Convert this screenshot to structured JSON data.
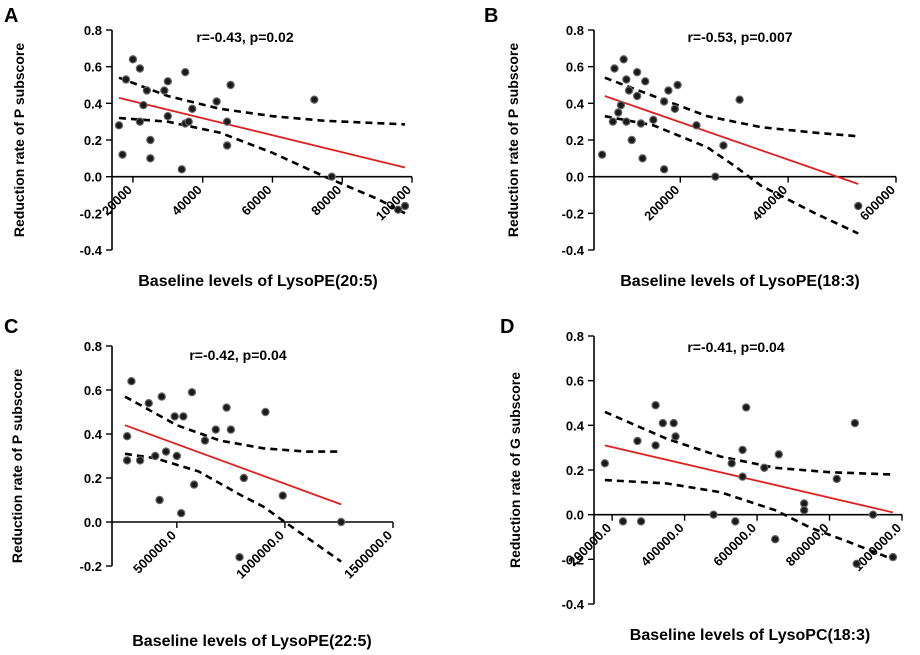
{
  "colors": {
    "fit_line": "#e02020",
    "points": "#1a1a1a",
    "axes": "#000000"
  },
  "chart_data": [
    {
      "type": "scatter",
      "panel": "A",
      "stat": "r=-0.43, p=0.02",
      "xlabel": "Baseline levels of LysoPE(20:5)",
      "ylabel": "Reduction rate of P subscore",
      "xlim": [
        14000,
        100000
      ],
      "ylim": [
        -0.4,
        0.8
      ],
      "xticks": [
        20000,
        40000,
        60000,
        80000,
        100000
      ],
      "xtick_labels": [
        "20000",
        "40000",
        "60000",
        "80000",
        "100000"
      ],
      "yticks": [
        -0.4,
        -0.2,
        0.0,
        0.2,
        0.4,
        0.6,
        0.8
      ],
      "ytick_labels": [
        "-0.4",
        "-0.2",
        "0.0",
        "0.2",
        "0.4",
        "0.6",
        "0.8"
      ],
      "points": [
        [
          20000,
          0.64
        ],
        [
          22000,
          0.59
        ],
        [
          18000,
          0.53
        ],
        [
          29000,
          0.47
        ],
        [
          24000,
          0.47
        ],
        [
          30000,
          0.52
        ],
        [
          35000,
          0.57
        ],
        [
          48000,
          0.5
        ],
        [
          23000,
          0.39
        ],
        [
          37000,
          0.37
        ],
        [
          44000,
          0.41
        ],
        [
          30000,
          0.33
        ],
        [
          22000,
          0.3
        ],
        [
          35000,
          0.29
        ],
        [
          36000,
          0.3
        ],
        [
          47000,
          0.3
        ],
        [
          16000,
          0.28
        ],
        [
          25000,
          0.2
        ],
        [
          47000,
          0.17
        ],
        [
          17000,
          0.12
        ],
        [
          25000,
          0.1
        ],
        [
          34000,
          0.04
        ],
        [
          72000,
          0.42
        ],
        [
          77000,
          0.0
        ],
        [
          96000,
          -0.18
        ],
        [
          98000,
          -0.16
        ]
      ],
      "fit": [
        [
          16000,
          0.43
        ],
        [
          98000,
          0.05
        ]
      ],
      "ci_upper": [
        [
          16000,
          0.54
        ],
        [
          30000,
          0.44
        ],
        [
          45000,
          0.37
        ],
        [
          60000,
          0.33
        ],
        [
          75000,
          0.305
        ],
        [
          98000,
          0.285
        ]
      ],
      "ci_lower": [
        [
          16000,
          0.32
        ],
        [
          30000,
          0.3
        ],
        [
          45000,
          0.24
        ],
        [
          60000,
          0.13
        ],
        [
          75000,
          0.0
        ],
        [
          90000,
          -0.12
        ],
        [
          98000,
          -0.2
        ]
      ]
    },
    {
      "type": "scatter",
      "panel": "B",
      "stat": "r=-0.53, p=0.007",
      "xlabel": "Baseline levels of LysoPE(18:3)",
      "ylabel": "Reduction rate of P subscore",
      "xlim": [
        40000,
        600000
      ],
      "ylim": [
        -0.4,
        0.8
      ],
      "xticks": [
        200000,
        400000,
        600000
      ],
      "xtick_labels": [
        "200000",
        "400000",
        "600000"
      ],
      "yticks": [
        -0.4,
        -0.2,
        0.0,
        0.2,
        0.4,
        0.6,
        0.8
      ],
      "ytick_labels": [
        "-0.4",
        "-0.2",
        "0.0",
        "0.2",
        "0.4",
        "0.6",
        "0.8"
      ],
      "points": [
        [
          95000,
          0.64
        ],
        [
          78000,
          0.59
        ],
        [
          120000,
          0.57
        ],
        [
          100000,
          0.53
        ],
        [
          135000,
          0.52
        ],
        [
          195000,
          0.5
        ],
        [
          105000,
          0.47
        ],
        [
          178000,
          0.47
        ],
        [
          120000,
          0.44
        ],
        [
          170000,
          0.41
        ],
        [
          90000,
          0.39
        ],
        [
          190000,
          0.37
        ],
        [
          85000,
          0.35
        ],
        [
          100000,
          0.3
        ],
        [
          150000,
          0.31
        ],
        [
          127000,
          0.29
        ],
        [
          75000,
          0.3
        ],
        [
          230000,
          0.28
        ],
        [
          110000,
          0.2
        ],
        [
          310000,
          0.42
        ],
        [
          280000,
          0.17
        ],
        [
          130000,
          0.1
        ],
        [
          55000,
          0.12
        ],
        [
          170000,
          0.04
        ],
        [
          265000,
          0.0
        ],
        [
          530000,
          -0.16
        ]
      ],
      "fit": [
        [
          60000,
          0.44
        ],
        [
          530000,
          -0.04
        ]
      ],
      "ci_upper": [
        [
          60000,
          0.54
        ],
        [
          150000,
          0.44
        ],
        [
          250000,
          0.33
        ],
        [
          350000,
          0.27
        ],
        [
          450000,
          0.24
        ],
        [
          530000,
          0.22
        ]
      ],
      "ci_lower": [
        [
          60000,
          0.33
        ],
        [
          150000,
          0.28
        ],
        [
          250000,
          0.16
        ],
        [
          300000,
          0.06
        ],
        [
          350000,
          -0.05
        ],
        [
          450000,
          -0.2
        ],
        [
          530000,
          -0.31
        ]
      ]
    },
    {
      "type": "scatter",
      "panel": "C",
      "stat": "r=-0.42, p=0.04",
      "xlabel": "Baseline levels of LysoPE(22:5)",
      "ylabel": "Reduction rate of P subscore",
      "xlim": [
        200000,
        1500000
      ],
      "ylim": [
        -0.2,
        0.8
      ],
      "xticks": [
        500000,
        1000000,
        1500000
      ],
      "xtick_labels": [
        "500000.0",
        "1000000.0",
        "1500000.0"
      ],
      "yticks": [
        -0.2,
        0.0,
        0.2,
        0.4,
        0.6,
        0.8
      ],
      "ytick_labels": [
        "-0.2",
        "0.0",
        "0.2",
        "0.4",
        "0.6",
        "0.8"
      ],
      "points": [
        [
          290000,
          0.64
        ],
        [
          430000,
          0.57
        ],
        [
          570000,
          0.59
        ],
        [
          370000,
          0.54
        ],
        [
          730000,
          0.52
        ],
        [
          910000,
          0.5
        ],
        [
          530000,
          0.48
        ],
        [
          490000,
          0.48
        ],
        [
          270000,
          0.39
        ],
        [
          680000,
          0.42
        ],
        [
          750000,
          0.42
        ],
        [
          630000,
          0.37
        ],
        [
          450000,
          0.32
        ],
        [
          270000,
          0.28
        ],
        [
          330000,
          0.28
        ],
        [
          400000,
          0.3
        ],
        [
          500000,
          0.3
        ],
        [
          810000,
          0.2
        ],
        [
          580000,
          0.17
        ],
        [
          990000,
          0.12
        ],
        [
          420000,
          0.1
        ],
        [
          520000,
          0.04
        ],
        [
          1260000,
          0.0
        ],
        [
          790000,
          -0.16
        ]
      ],
      "fit": [
        [
          260000,
          0.44
        ],
        [
          1260000,
          0.08
        ]
      ],
      "ci_upper": [
        [
          260000,
          0.57
        ],
        [
          500000,
          0.44
        ],
        [
          700000,
          0.37
        ],
        [
          900000,
          0.335
        ],
        [
          1100000,
          0.32
        ],
        [
          1260000,
          0.32
        ]
      ],
      "ci_lower": [
        [
          260000,
          0.31
        ],
        [
          400000,
          0.29
        ],
        [
          600000,
          0.23
        ],
        [
          800000,
          0.12
        ],
        [
          900000,
          0.07
        ],
        [
          1000000,
          0.0
        ],
        [
          1260000,
          -0.18
        ]
      ]
    },
    {
      "type": "scatter",
      "panel": "D",
      "stat": "r=-0.41, p=0.04",
      "xlabel": "Baseline levels of LysoPC(18:3)",
      "ylabel": "Reduction rate of G subscore",
      "xlim": [
        150000,
        1000000
      ],
      "ylim": [
        -0.4,
        0.8
      ],
      "xticks": [
        200000,
        400000,
        600000,
        800000,
        1000000
      ],
      "xtick_labels": [
        "200000.0",
        "400000.0",
        "600000.0",
        "800000.0",
        "1000000.0"
      ],
      "yticks": [
        -0.4,
        -0.2,
        0.0,
        0.2,
        0.4,
        0.6,
        0.8
      ],
      "ytick_labels": [
        "-0.4",
        "-0.2",
        "0.0",
        "0.2",
        "0.4",
        "0.6",
        "0.8"
      ],
      "points": [
        [
          320000,
          0.49
        ],
        [
          570000,
          0.48
        ],
        [
          340000,
          0.41
        ],
        [
          370000,
          0.41
        ],
        [
          870000,
          0.41
        ],
        [
          375000,
          0.35
        ],
        [
          270000,
          0.33
        ],
        [
          320000,
          0.31
        ],
        [
          560000,
          0.29
        ],
        [
          660000,
          0.27
        ],
        [
          530000,
          0.23
        ],
        [
          620000,
          0.21
        ],
        [
          180000,
          0.23
        ],
        [
          560000,
          0.17
        ],
        [
          820000,
          0.16
        ],
        [
          730000,
          0.05
        ],
        [
          730000,
          0.02
        ],
        [
          230000,
          -0.03
        ],
        [
          280000,
          -0.03
        ],
        [
          480000,
          0.0
        ],
        [
          540000,
          -0.03
        ],
        [
          650000,
          -0.11
        ],
        [
          875000,
          -0.22
        ],
        [
          920000,
          0.0
        ],
        [
          975000,
          -0.19
        ]
      ],
      "fit": [
        [
          180000,
          0.31
        ],
        [
          975000,
          0.01
        ]
      ],
      "ci_upper": [
        [
          180000,
          0.46
        ],
        [
          350000,
          0.34
        ],
        [
          500000,
          0.26
        ],
        [
          650000,
          0.21
        ],
        [
          800000,
          0.19
        ],
        [
          975000,
          0.18
        ]
      ],
      "ci_lower": [
        [
          180000,
          0.155
        ],
        [
          350000,
          0.14
        ],
        [
          500000,
          0.1
        ],
        [
          650000,
          0.02
        ],
        [
          750000,
          -0.06
        ],
        [
          850000,
          -0.12
        ],
        [
          975000,
          -0.2
        ]
      ]
    }
  ]
}
